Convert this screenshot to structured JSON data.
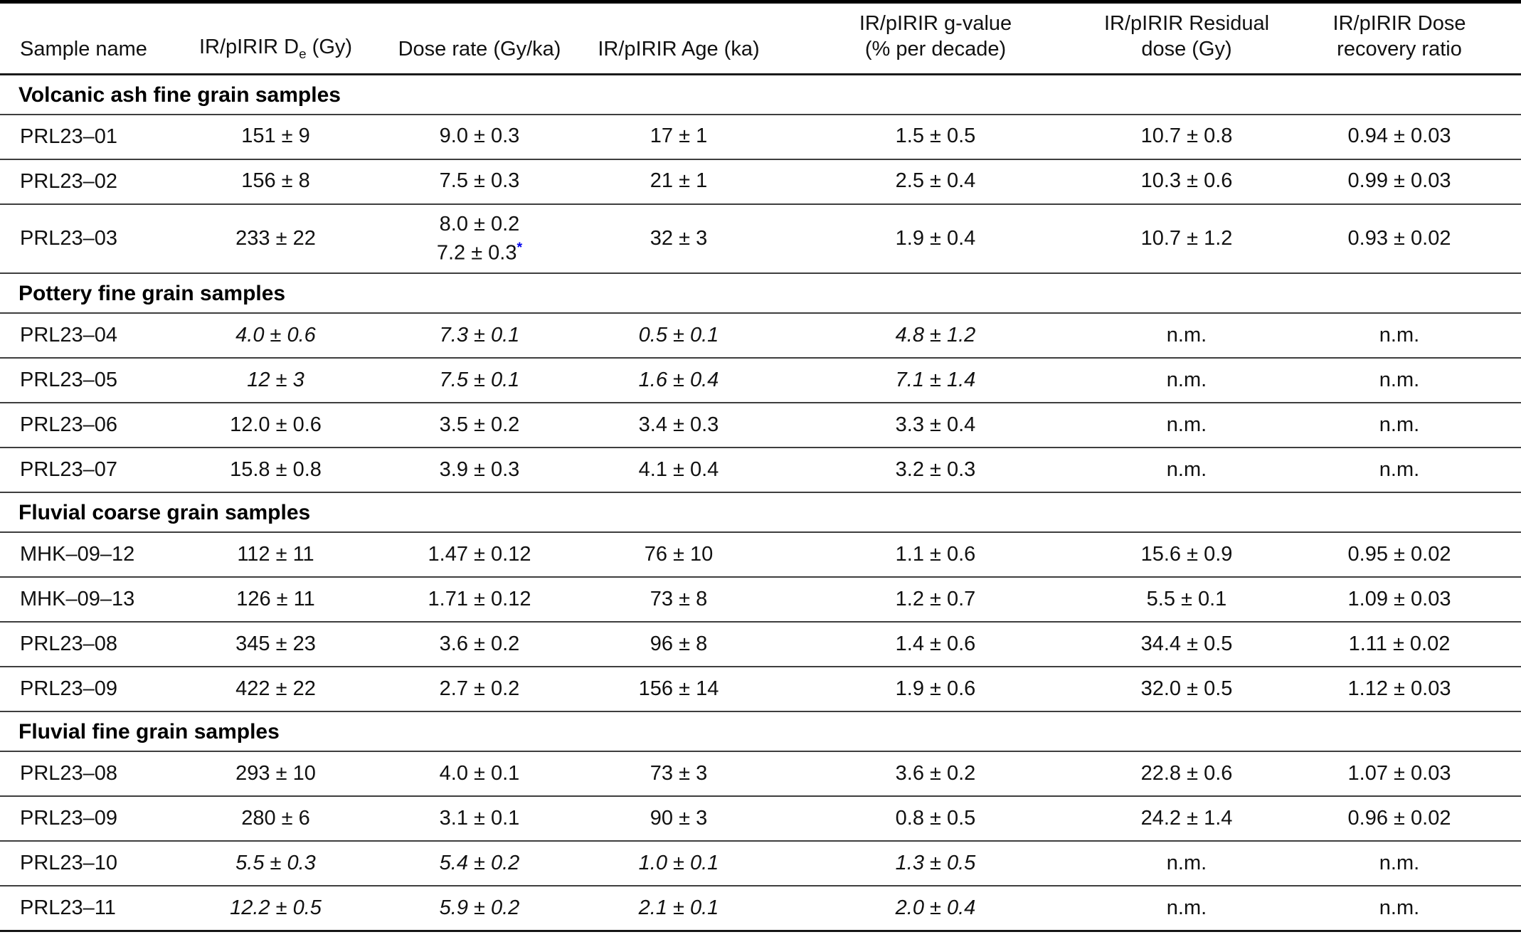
{
  "table": {
    "columns": [
      {
        "label": "Sample name"
      },
      {
        "pre": "IR/pIRIR D",
        "sub": "e",
        "post": " (Gy)"
      },
      {
        "label": "Dose rate (Gy/ka)"
      },
      {
        "label": "IR/pIRIR Age (ka)"
      },
      {
        "line1": "IR/pIRIR g-value",
        "line2": "(% per decade)"
      },
      {
        "line1": "IR/pIRIR Residual",
        "line2": "dose (Gy)"
      },
      {
        "line1": "IR/pIRIR Dose",
        "line2": "recovery ratio"
      }
    ],
    "footnote_marker_color": "#0000EE",
    "sections": [
      {
        "title": "Volcanic ash fine grain samples",
        "rows": [
          {
            "sample": "PRL23–01",
            "cells": [
              {
                "text": "151 ± 9"
              },
              {
                "text": "9.0 ± 0.3"
              },
              {
                "text": "17 ± 1"
              },
              {
                "text": "1.5 ± 0.5"
              },
              {
                "text": "10.7 ± 0.8"
              },
              {
                "text": "0.94 ± 0.03"
              }
            ]
          },
          {
            "sample": "PRL23–02",
            "cells": [
              {
                "text": "156 ± 8"
              },
              {
                "text": "7.5 ± 0.3"
              },
              {
                "text": "21 ± 1"
              },
              {
                "text": "2.5 ± 0.4"
              },
              {
                "text": "10.3 ± 0.6"
              },
              {
                "text": "0.99 ± 0.03"
              }
            ]
          },
          {
            "sample": "PRL23–03",
            "cells": [
              {
                "text": "233 ± 22"
              },
              {
                "text": "8.0 ± 0.2",
                "line2": "7.2 ± 0.3",
                "line2_sup": "*"
              },
              {
                "text": "32 ± 3"
              },
              {
                "text": "1.9 ± 0.4"
              },
              {
                "text": "10.7 ± 1.2"
              },
              {
                "text": "0.93 ± 0.02"
              }
            ]
          }
        ]
      },
      {
        "title": "Pottery fine grain samples",
        "rows": [
          {
            "sample": "PRL23–04",
            "cells": [
              {
                "text": "4.0 ± 0.6",
                "italic": true
              },
              {
                "text": "7.3 ± 0.1",
                "italic": true
              },
              {
                "text": "0.5 ± 0.1",
                "italic": true
              },
              {
                "text": "4.8 ± 1.2",
                "italic": true
              },
              {
                "text": "n.m."
              },
              {
                "text": "n.m."
              }
            ]
          },
          {
            "sample": "PRL23–05",
            "cells": [
              {
                "text": "12 ± 3",
                "italic": true
              },
              {
                "text": "7.5 ± 0.1",
                "italic": true
              },
              {
                "text": "1.6 ± 0.4",
                "italic": true
              },
              {
                "text": "7.1 ± 1.4",
                "italic": true
              },
              {
                "text": "n.m."
              },
              {
                "text": "n.m."
              }
            ]
          },
          {
            "sample": "PRL23–06",
            "cells": [
              {
                "text": "12.0 ± 0.6"
              },
              {
                "text": "3.5 ± 0.2"
              },
              {
                "text": "3.4 ± 0.3"
              },
              {
                "text": "3.3 ± 0.4"
              },
              {
                "text": "n.m."
              },
              {
                "text": "n.m."
              }
            ]
          },
          {
            "sample": "PRL23–07",
            "cells": [
              {
                "text": "15.8 ± 0.8"
              },
              {
                "text": "3.9 ± 0.3"
              },
              {
                "text": "4.1 ± 0.4"
              },
              {
                "text": "3.2 ± 0.3"
              },
              {
                "text": "n.m."
              },
              {
                "text": "n.m."
              }
            ]
          }
        ]
      },
      {
        "title": "Fluvial coarse grain samples",
        "rows": [
          {
            "sample": "MHK–09–12",
            "cells": [
              {
                "text": "112 ± 11"
              },
              {
                "text": "1.47 ± 0.12"
              },
              {
                "text": "76 ± 10"
              },
              {
                "text": "1.1 ± 0.6"
              },
              {
                "text": "15.6 ± 0.9"
              },
              {
                "text": "0.95 ± 0.02"
              }
            ]
          },
          {
            "sample": "MHK–09–13",
            "cells": [
              {
                "text": "126 ± 11"
              },
              {
                "text": "1.71 ± 0.12"
              },
              {
                "text": "73 ± 8"
              },
              {
                "text": "1.2 ± 0.7"
              },
              {
                "text": "5.5 ± 0.1"
              },
              {
                "text": "1.09 ± 0.03"
              }
            ]
          },
          {
            "sample": "PRL23–08",
            "cells": [
              {
                "text": "345 ± 23"
              },
              {
                "text": "3.6 ± 0.2"
              },
              {
                "text": "96 ± 8"
              },
              {
                "text": "1.4 ± 0.6"
              },
              {
                "text": "34.4 ± 0.5"
              },
              {
                "text": "1.11 ± 0.02"
              }
            ]
          },
          {
            "sample": "PRL23–09",
            "cells": [
              {
                "text": "422 ± 22"
              },
              {
                "text": "2.7 ± 0.2"
              },
              {
                "text": "156 ± 14"
              },
              {
                "text": "1.9 ± 0.6"
              },
              {
                "text": "32.0 ± 0.5"
              },
              {
                "text": "1.12 ± 0.03"
              }
            ]
          }
        ]
      },
      {
        "title": "Fluvial fine grain samples",
        "rows": [
          {
            "sample": "PRL23–08",
            "cells": [
              {
                "text": "293 ± 10"
              },
              {
                "text": "4.0 ± 0.1"
              },
              {
                "text": "73 ± 3"
              },
              {
                "text": "3.6 ± 0.2"
              },
              {
                "text": "22.8 ± 0.6"
              },
              {
                "text": "1.07 ± 0.03"
              }
            ]
          },
          {
            "sample": "PRL23–09",
            "cells": [
              {
                "text": "280 ± 6"
              },
              {
                "text": "3.1 ± 0.1"
              },
              {
                "text": "90 ± 3"
              },
              {
                "text": "0.8 ± 0.5"
              },
              {
                "text": "24.2 ± 1.4"
              },
              {
                "text": "0.96 ± 0.02"
              }
            ]
          },
          {
            "sample": "PRL23–10",
            "cells": [
              {
                "text": "5.5 ± 0.3",
                "italic": true
              },
              {
                "text": "5.4 ± 0.2",
                "italic": true
              },
              {
                "text": "1.0 ± 0.1",
                "italic": true
              },
              {
                "text": "1.3 ± 0.5",
                "italic": true
              },
              {
                "text": "n.m."
              },
              {
                "text": "n.m."
              }
            ]
          },
          {
            "sample": "PRL23–11",
            "cells": [
              {
                "text": "12.2 ± 0.5",
                "italic": true
              },
              {
                "text": "5.9 ± 0.2",
                "italic": true
              },
              {
                "text": "2.1 ± 0.1",
                "italic": true
              },
              {
                "text": "2.0 ± 0.4",
                "italic": true
              },
              {
                "text": "n.m."
              },
              {
                "text": "n.m."
              }
            ]
          }
        ]
      }
    ]
  }
}
